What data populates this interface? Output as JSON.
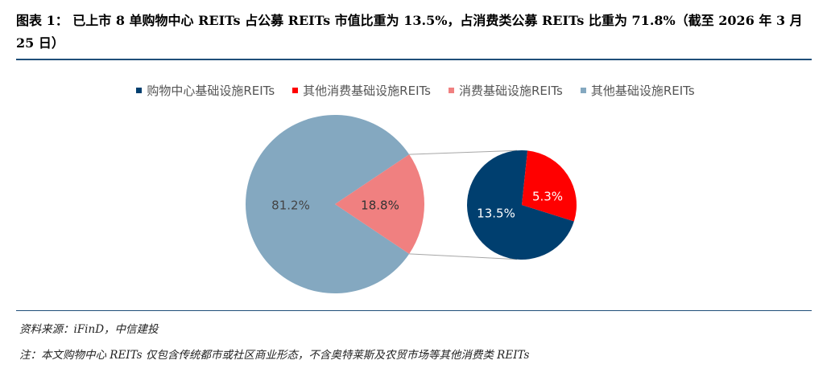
{
  "header": {
    "title": "图表 1：  已上市 8 单购物中心 REITs 占公募 REITs 市值比重为 13.5%，占消费类公募 REITs 比重为 71.8%（截至 2026 年 3 月 25 日）"
  },
  "footer": {
    "source": "资料来源：iFinD，中信建投",
    "note": "注：本文购物中心 REITs 仅包含传统都市或社区商业形态，不含奥特莱斯及农贸市场等其他消费类 REITs"
  },
  "chart_data": {
    "type": "pie",
    "legend": {
      "placement": "top-center",
      "entries": [
        {
          "name": "购物中心基础设施REITs",
          "color": "#003f6f"
        },
        {
          "name": "其他消费基础设施REITs",
          "color": "#ff0000"
        },
        {
          "name": "消费基础设施REITs",
          "color": "#f08080"
        },
        {
          "name": "其他基础设施REITs",
          "color": "#84a8c0"
        }
      ]
    },
    "main_pie": [
      {
        "name": "其他基础设施REITs",
        "value": 81.2,
        "label": "81.2%",
        "color": "#84a8c0"
      },
      {
        "name": "消费基础设施REITs",
        "value": 18.8,
        "label": "18.8%",
        "color": "#f08080"
      }
    ],
    "secondary_pie": [
      {
        "name": "购物中心基础设施REITs",
        "value": 13.5,
        "label": "13.5%",
        "color": "#003f6f"
      },
      {
        "name": "其他消费基础设施REITs",
        "value": 5.3,
        "label": "5.3%",
        "color": "#ff0000"
      }
    ]
  }
}
